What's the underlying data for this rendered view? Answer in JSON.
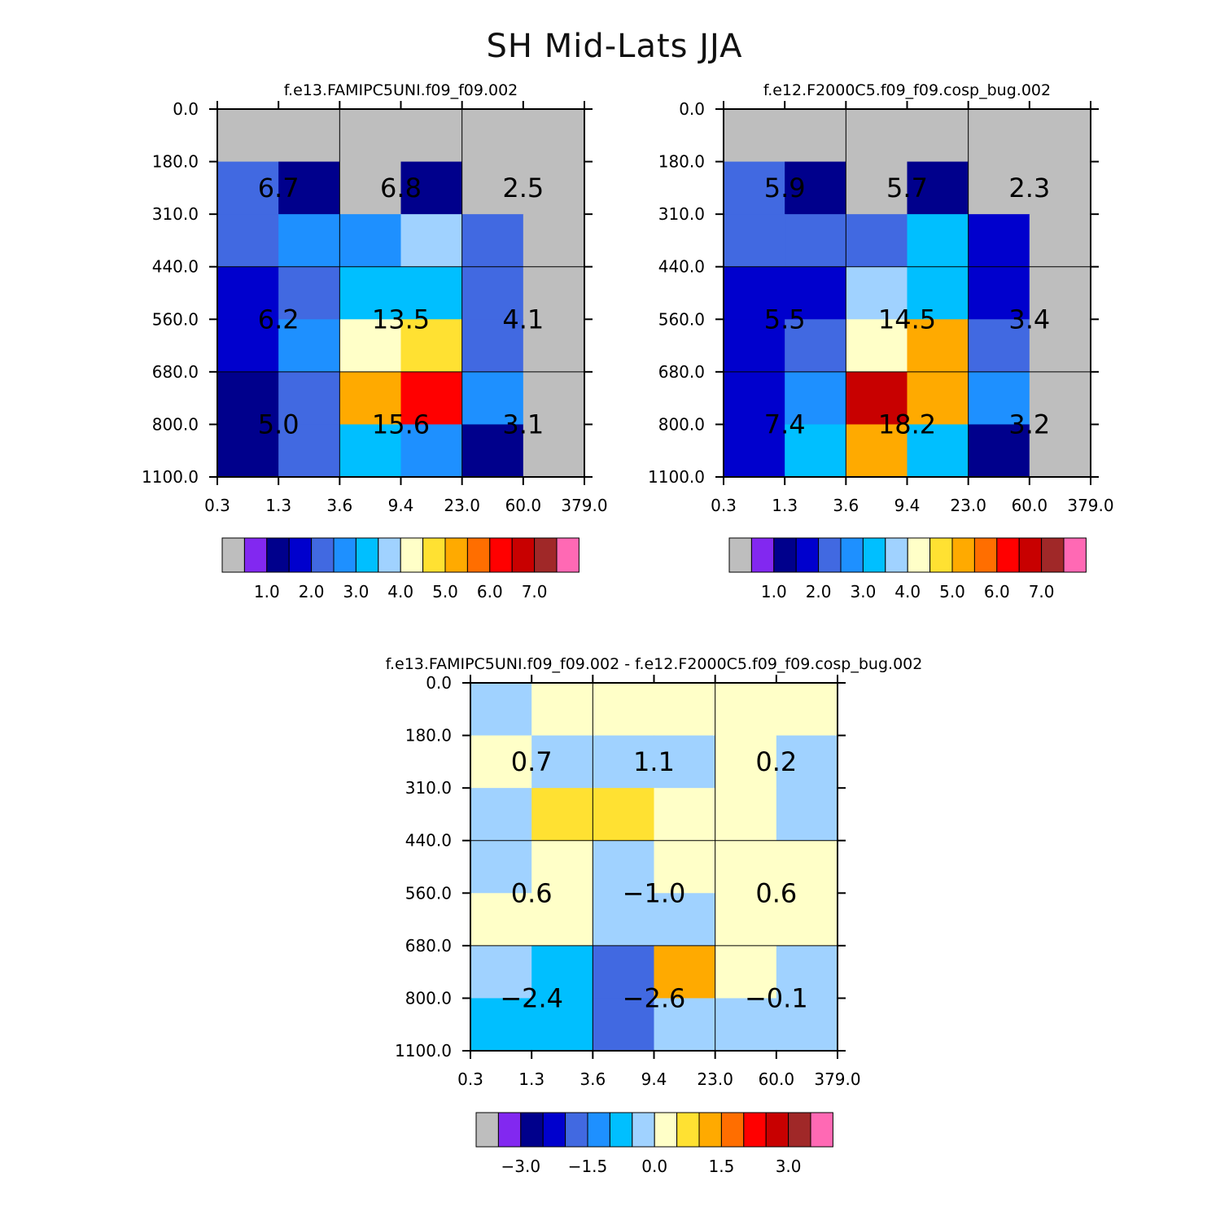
{
  "title": "SH Mid-Lats JJA",
  "chart_data": [
    {
      "type": "heatmap",
      "title": "f.e13.FAMIPC5UNI.f09_f09.002",
      "x_edges": [
        "0.3",
        "1.3",
        "3.6",
        "9.4",
        "23.0",
        "60.0",
        "379.0"
      ],
      "y_edges": [
        "0.0",
        "180.0",
        "310.0",
        "440.0",
        "560.0",
        "680.0",
        "800.0",
        "1100.0"
      ],
      "cells": [
        [
          -1,
          -1,
          -1,
          -1,
          -1,
          -1
        ],
        [
          2.0,
          0.8,
          -1,
          0.8,
          -1,
          -1
        ],
        [
          2.0,
          2.5,
          2.5,
          3.5,
          2.0,
          -1
        ],
        [
          1.5,
          2.0,
          3.0,
          3.0,
          2.0,
          -1
        ],
        [
          1.5,
          2.5,
          4.0,
          4.5,
          2.0,
          -1
        ],
        [
          0.8,
          2.0,
          5.0,
          6.0,
          2.5,
          -1
        ],
        [
          0.8,
          2.0,
          3.0,
          2.5,
          0.8,
          -1
        ]
      ],
      "box_labels": [
        [
          "6.7",
          "6.8",
          "2.5"
        ],
        [
          "6.2",
          "13.5",
          "4.1"
        ],
        [
          "5.0",
          "15.6",
          "3.1"
        ]
      ],
      "colorbar": {
        "colors": [
          "#bebebe",
          "#8228f0",
          "#00008c",
          "#0000cd",
          "#4169e1",
          "#1e90ff",
          "#00bfff",
          "#a0d2ff",
          "#ffffc8",
          "#ffe132",
          "#ffaa00",
          "#ff6e00",
          "#ff0000",
          "#c80000",
          "#a02828",
          "#ff69b4"
        ],
        "labels": [
          "1.0",
          "2.0",
          "3.0",
          "4.0",
          "5.0",
          "6.0",
          "7.0"
        ]
      }
    },
    {
      "type": "heatmap",
      "title": "f.e12.F2000C5.f09_f09.cosp_bug.002",
      "x_edges": [
        "0.3",
        "1.3",
        "3.6",
        "9.4",
        "23.0",
        "60.0",
        "379.0"
      ],
      "y_edges": [
        "0.0",
        "180.0",
        "310.0",
        "440.0",
        "560.0",
        "680.0",
        "800.0",
        "1100.0"
      ],
      "cells": [
        [
          -1,
          -1,
          -1,
          -1,
          -1,
          -1
        ],
        [
          2.0,
          0.8,
          -1,
          0.8,
          -1,
          -1
        ],
        [
          2.0,
          2.0,
          2.0,
          3.0,
          1.5,
          -1
        ],
        [
          1.5,
          1.5,
          3.5,
          3.0,
          1.5,
          -1
        ],
        [
          1.5,
          2.0,
          4.0,
          5.0,
          2.0,
          -1
        ],
        [
          1.5,
          2.5,
          6.5,
          5.0,
          2.5,
          -1
        ],
        [
          1.5,
          3.0,
          5.0,
          3.0,
          0.8,
          -1
        ]
      ],
      "box_labels": [
        [
          "5.9",
          "5.7",
          "2.3"
        ],
        [
          "5.5",
          "14.5",
          "3.4"
        ],
        [
          "7.4",
          "18.2",
          "3.2"
        ]
      ],
      "colorbar": {
        "colors": [
          "#bebebe",
          "#8228f0",
          "#00008c",
          "#0000cd",
          "#4169e1",
          "#1e90ff",
          "#00bfff",
          "#a0d2ff",
          "#ffffc8",
          "#ffe132",
          "#ffaa00",
          "#ff6e00",
          "#ff0000",
          "#c80000",
          "#a02828",
          "#ff69b4"
        ],
        "labels": [
          "1.0",
          "2.0",
          "3.0",
          "4.0",
          "5.0",
          "6.0",
          "7.0"
        ]
      }
    },
    {
      "type": "heatmap",
      "title": "f.e13.FAMIPC5UNI.f09_f09.002 - f.e12.F2000C5.f09_f09.cosp_bug.002",
      "x_edges": [
        "0.3",
        "1.3",
        "3.6",
        "9.4",
        "23.0",
        "60.0",
        "379.0"
      ],
      "y_edges": [
        "0.0",
        "180.0",
        "310.0",
        "440.0",
        "560.0",
        "680.0",
        "800.0",
        "1100.0"
      ],
      "cells": [
        [
          -0.2,
          0.2,
          0.2,
          0.2,
          0.2,
          0.2
        ],
        [
          0.2,
          -0.2,
          -0.2,
          -0.2,
          0.2,
          -0.2
        ],
        [
          -0.2,
          0.8,
          0.8,
          0.2,
          0.2,
          -0.2
        ],
        [
          -0.2,
          0.2,
          -0.2,
          0.2,
          0.2,
          0.2
        ],
        [
          0.2,
          0.2,
          -0.2,
          -0.2,
          0.2,
          0.2
        ],
        [
          -0.2,
          -0.7,
          -1.7,
          1.2,
          0.2,
          -0.2
        ],
        [
          -0.7,
          -0.7,
          -1.7,
          -0.2,
          -0.2,
          -0.2
        ]
      ],
      "box_labels": [
        [
          "0.7",
          "1.1",
          "0.2"
        ],
        [
          "0.6",
          "−1.0",
          "0.6"
        ],
        [
          "−2.4",
          "−2.6",
          "−0.1"
        ]
      ],
      "colorbar": {
        "colors": [
          "#bebebe",
          "#8228f0",
          "#00008c",
          "#0000cd",
          "#4169e1",
          "#1e90ff",
          "#00bfff",
          "#a0d2ff",
          "#ffffc8",
          "#ffe132",
          "#ffaa00",
          "#ff6e00",
          "#ff0000",
          "#c80000",
          "#a02828",
          "#ff69b4"
        ],
        "labels": [
          "−3.0",
          "−1.5",
          "0.0",
          "1.5",
          "3.0"
        ]
      }
    }
  ]
}
